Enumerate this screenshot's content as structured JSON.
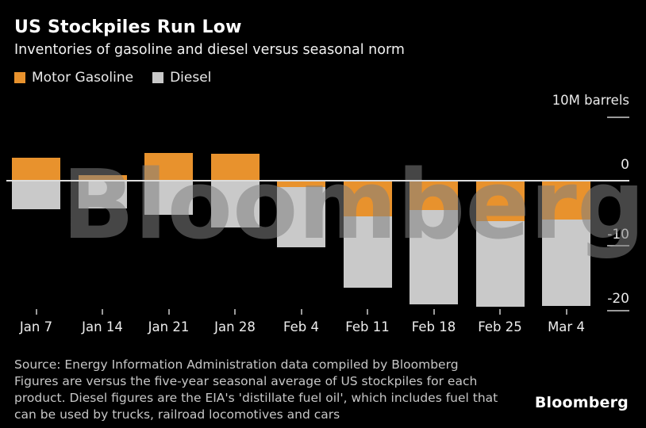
{
  "header": {
    "title": "US Stockpiles Run Low",
    "subtitle": "Inventories of gasoline and diesel versus seasonal norm"
  },
  "legend": [
    {
      "label": "Motor Gasoline",
      "color": "#E8922D"
    },
    {
      "label": "Diesel",
      "color": "#C9C9C9"
    }
  ],
  "axis": {
    "unit_label": "10M barrels",
    "y_tick_labels": [
      "0",
      "-10",
      "-20"
    ]
  },
  "chart_data": {
    "type": "bar",
    "stacked": true,
    "categories": [
      "Jan 7",
      "Jan 14",
      "Jan 21",
      "Jan 28",
      "Feb 4",
      "Feb 11",
      "Feb 18",
      "Feb 25",
      "Mar 4"
    ],
    "series": [
      {
        "name": "Motor Gasoline",
        "color": "#E8922D",
        "values": [
          3.5,
          0.8,
          4.3,
          4.2,
          -1.0,
          -5.5,
          -4.5,
          -6.2,
          -6.0
        ]
      },
      {
        "name": "Diesel",
        "color": "#C9C9C9",
        "values": [
          -4.4,
          -4.3,
          -5.2,
          -7.2,
          -9.3,
          -11.0,
          -14.5,
          -13.2,
          -13.3
        ]
      }
    ],
    "title": "US Stockpiles Run Low",
    "subtitle": "Inventories of gasoline and diesel versus seasonal norm",
    "xlabel": "",
    "ylabel": "10M barrels",
    "ylim": [
      -22,
      6
    ],
    "y_gridlines": [
      0,
      -10,
      -20
    ],
    "legend_position": "top-left",
    "unit": "M barrels vs five-year seasonal average"
  },
  "watermark": {
    "text": "Bloomberg"
  },
  "footer": {
    "source_lines": [
      "Source: Energy Information Administration data compiled by Bloomberg",
      "Figures are versus the five-year seasonal average of US stockpiles for each",
      "product. Diesel figures are the EIA's 'distillate fuel oil', which includes fuel that",
      "can be used by trucks, railroad locomotives and cars"
    ],
    "logo": "Bloomberg"
  }
}
